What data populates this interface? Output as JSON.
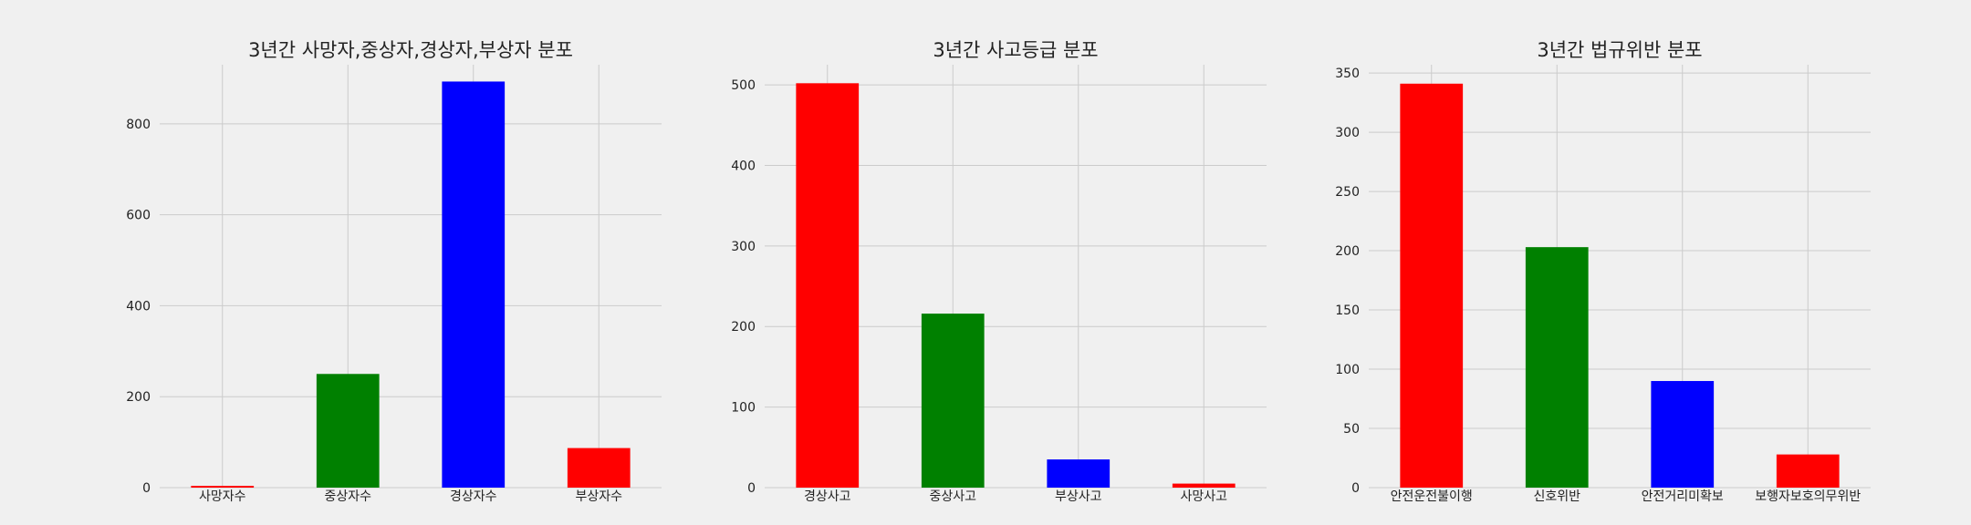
{
  "chart_data": [
    {
      "type": "bar",
      "title": "3년간 사망자,중상자,경상자,부상자 분포",
      "categories": [
        "사망자수",
        "중상자수",
        "경상자수",
        "부상자수"
      ],
      "values": [
        4,
        250,
        893,
        87
      ],
      "colors": [
        "#ff0000",
        "#008000",
        "#0000ff",
        "#ff0000"
      ],
      "ylim": [
        0,
        930
      ],
      "yticks": [
        0,
        200,
        400,
        600,
        800
      ],
      "grid": true,
      "xlabel": "",
      "ylabel": ""
    },
    {
      "type": "bar",
      "title": "3년간 사고등급 분포",
      "categories": [
        "경상사고",
        "중상사고",
        "부상사고",
        "사망사고"
      ],
      "values": [
        502,
        216,
        35,
        5
      ],
      "colors": [
        "#ff0000",
        "#008000",
        "#0000ff",
        "#ff0000"
      ],
      "ylim": [
        0,
        525
      ],
      "yticks": [
        0,
        100,
        200,
        300,
        400,
        500
      ],
      "grid": true,
      "xlabel": "",
      "ylabel": ""
    },
    {
      "type": "bar",
      "title": "3년간 법규위반 분포",
      "categories": [
        "안전운전불이행",
        "신호위반",
        "안전거리미확보",
        "보행자보호의무위반"
      ],
      "values": [
        341,
        203,
        90,
        28
      ],
      "colors": [
        "#ff0000",
        "#008000",
        "#0000ff",
        "#ff0000"
      ],
      "ylim": [
        0,
        357
      ],
      "yticks": [
        0,
        50,
        100,
        150,
        200,
        250,
        300,
        350
      ],
      "grid": true,
      "xlabel": "",
      "ylabel": ""
    }
  ]
}
